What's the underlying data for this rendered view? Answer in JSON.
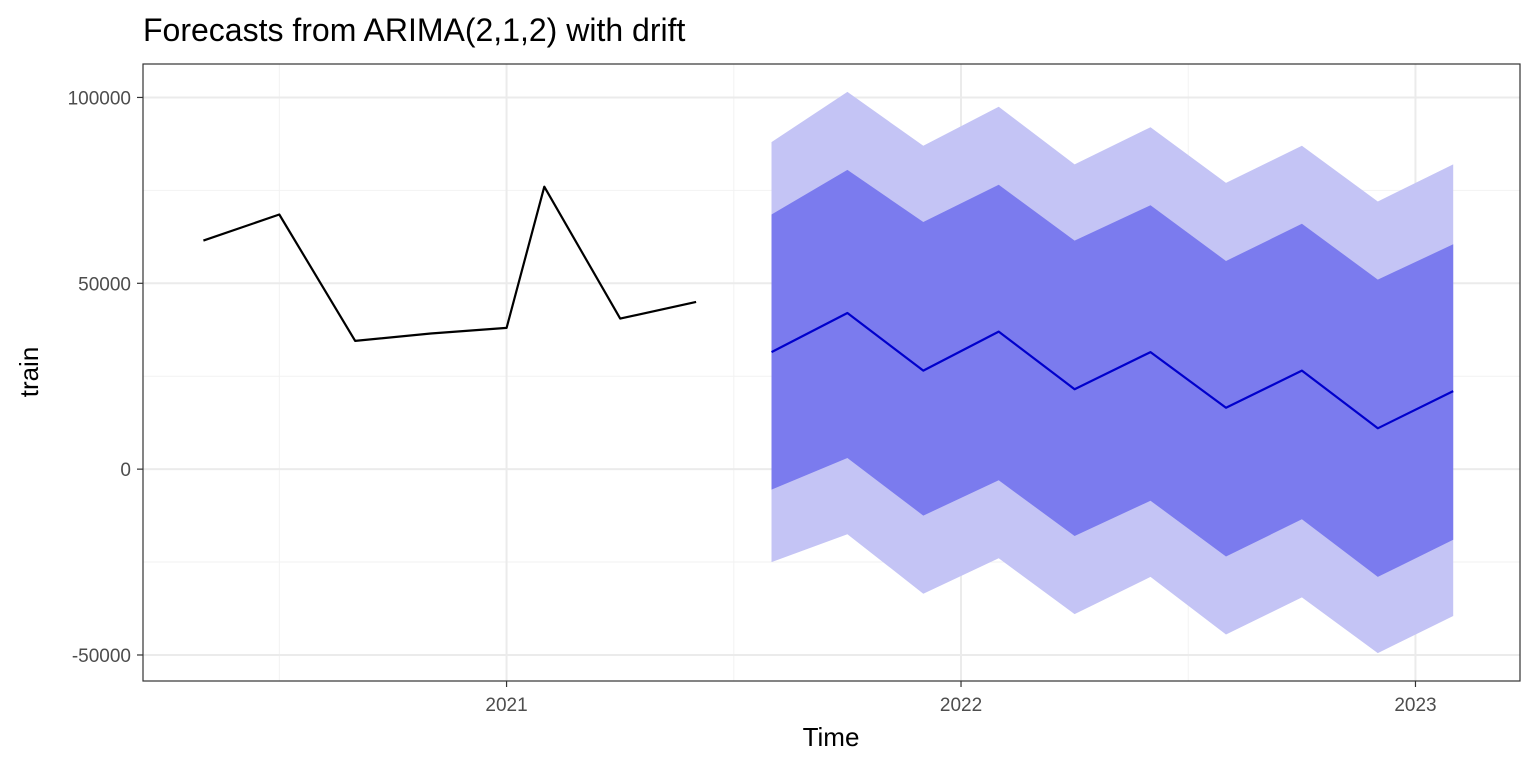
{
  "chart_data": {
    "type": "line",
    "title": "Forecasts from ARIMA(2,1,2) with drift",
    "xlabel": "Time",
    "ylabel": "train",
    "xlim": [
      2020.2,
      2023.23
    ],
    "ylim": [
      -57000,
      109000
    ],
    "x_ticks": [
      2021,
      2022,
      2023
    ],
    "x_tick_labels": [
      "2021",
      "2022",
      "2023"
    ],
    "y_ticks": [
      -50000,
      0,
      50000,
      100000
    ],
    "y_tick_labels": [
      "-50000",
      "0",
      "50000",
      "100000"
    ],
    "grid": true,
    "colors": {
      "observed": "#000000",
      "forecast": "#0000cc",
      "band80": "#7b7bee",
      "band95": "#c4c4f5"
    },
    "observed": {
      "x": [
        2020.333,
        2020.5,
        2020.667,
        2020.833,
        2021.0,
        2021.083,
        2021.25,
        2021.417
      ],
      "y": [
        61500,
        68500,
        34500,
        36500,
        38000,
        76000,
        40500,
        45000
      ]
    },
    "forecast": {
      "x": [
        2021.583,
        2021.75,
        2021.917,
        2022.083,
        2022.25,
        2022.417,
        2022.583,
        2022.75,
        2022.917,
        2023.083
      ],
      "mean": [
        31500,
        42000,
        26500,
        37000,
        21500,
        31500,
        16500,
        26500,
        11000,
        21000
      ],
      "lo80": [
        -5500,
        3000,
        -12500,
        -3000,
        -18000,
        -8500,
        -23500,
        -13500,
        -29000,
        -19000
      ],
      "hi80": [
        68500,
        80500,
        66500,
        76500,
        61500,
        71000,
        56000,
        66000,
        51000,
        60500
      ],
      "lo95": [
        -25000,
        -17500,
        -33500,
        -24000,
        -39000,
        -29000,
        -44500,
        -34500,
        -49500,
        -39500
      ],
      "hi95": [
        88000,
        101500,
        87000,
        97500,
        82000,
        92000,
        77000,
        87000,
        72000,
        82000
      ]
    }
  }
}
